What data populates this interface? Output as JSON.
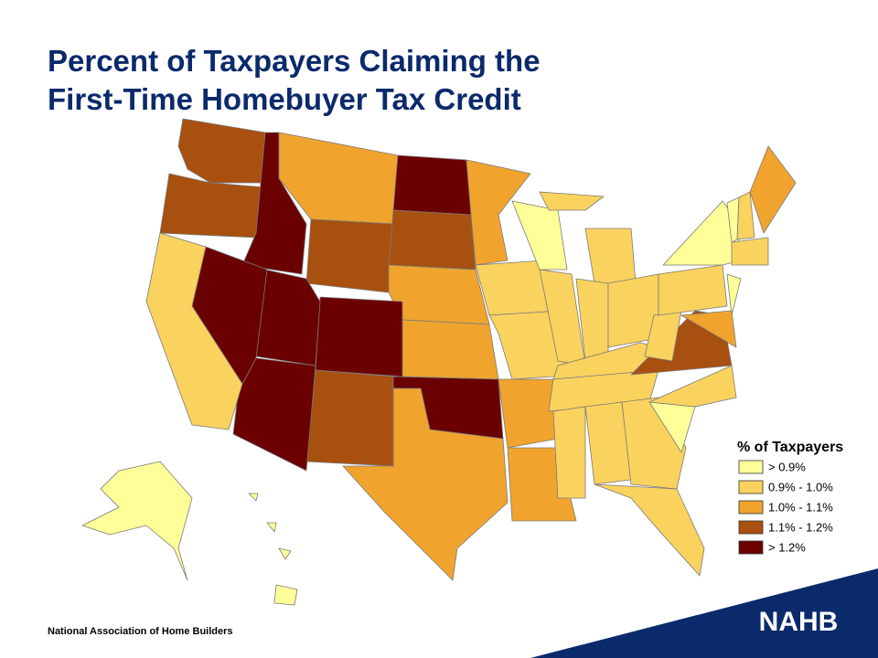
{
  "header": {
    "title_lines": [
      "Percent of Taxpayers Claiming the",
      "First-Time Homebuyer Tax Credit"
    ]
  },
  "legend": {
    "title": "% of Taxpayers",
    "items": [
      {
        "label": "> 0.9%",
        "color": "#ffff99"
      },
      {
        "label": "0.9% - 1.0%",
        "color": "#fad25e"
      },
      {
        "label": "1.0% - 1.1%",
        "color": "#f0a42e"
      },
      {
        "label": "1.1% - 1.2%",
        "color": "#a85010"
      },
      {
        "label": "> 1.2%",
        "color": "#6b0000"
      }
    ]
  },
  "footer": {
    "organization": "National Association of Home Builders",
    "logo": "NAHB"
  }
}
